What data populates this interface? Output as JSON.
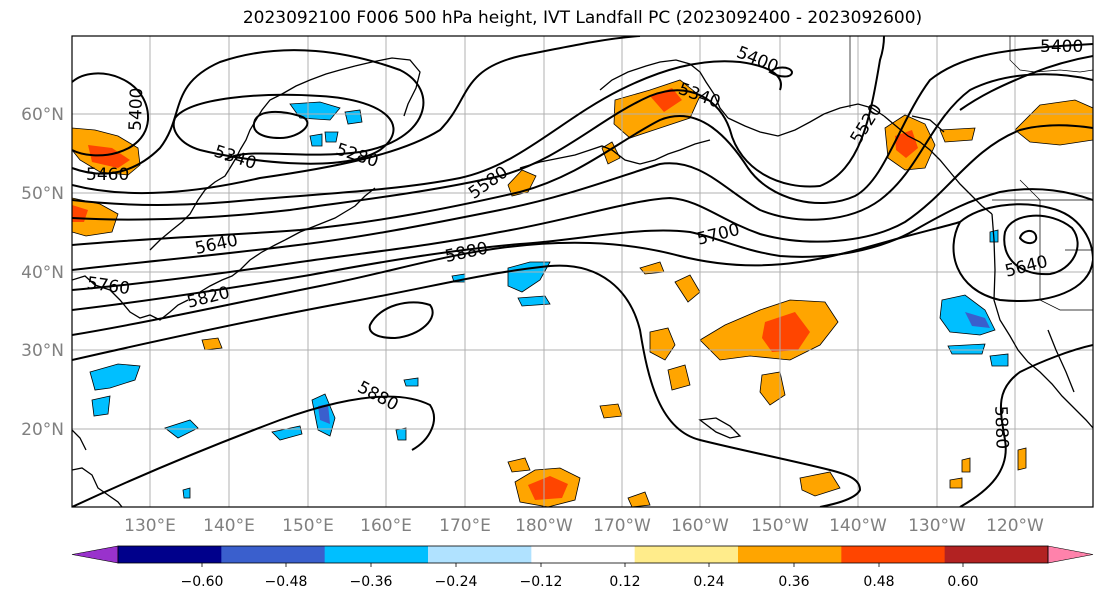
{
  "title": "2023092100 F006 500 hPa height, IVT Landfall PC (2023092400 - 2023092600)",
  "lat_labels": [
    "20°N",
    "30°N",
    "40°N",
    "50°N",
    "60°N"
  ],
  "lon_labels": [
    "130°E",
    "140°E",
    "150°E",
    "160°E",
    "170°E",
    "180°W",
    "170°W",
    "160°W",
    "150°W",
    "140°W",
    "130°W",
    "120°W"
  ],
  "contour_labels": [
    "5400",
    "5460",
    "5340",
    "5280",
    "5580",
    "5640",
    "5760",
    "5820",
    "5880",
    "5880",
    "5700",
    "5340",
    "5520",
    "5400",
    "5640",
    "5880",
    "5400"
  ],
  "colorbar": {
    "ticks": [
      "−0.60",
      "−0.48",
      "−0.36",
      "−0.24",
      "−0.12",
      "0.12",
      "0.24",
      "0.36",
      "0.48",
      "0.60"
    ],
    "colors": [
      "#9932cc",
      "#00008b",
      "#3a5fcd",
      "#00bfff",
      "#b0e2ff",
      "#ffffff",
      "#ffec8b",
      "#ffa500",
      "#ff4500",
      "#b22222",
      "#ff82ab"
    ]
  },
  "colors": {
    "land": "#000000",
    "grid": "#b0b0b0",
    "tick_label": "#808080"
  }
}
